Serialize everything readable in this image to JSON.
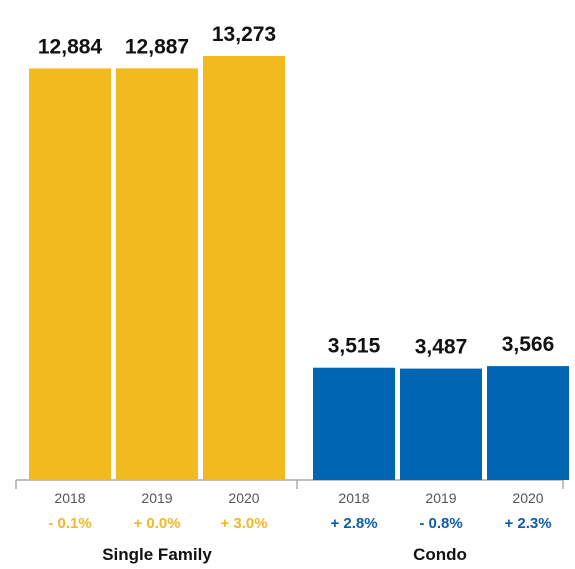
{
  "chart_data": {
    "type": "bar",
    "title": "",
    "xlabel": "",
    "ylabel": "",
    "ylim": [
      0,
      13273
    ],
    "groups": [
      {
        "name": "Single Family",
        "color": "#F2BA1E",
        "change_color": "#F2BA1E",
        "categories": [
          "2018",
          "2019",
          "2020"
        ],
        "values": [
          12884,
          12887,
          13273
        ],
        "value_labels": [
          "12,884",
          "12,887",
          "13,273"
        ],
        "changes": [
          "- 0.1%",
          "+ 0.0%",
          "+ 3.0%"
        ]
      },
      {
        "name": "Condo",
        "color": "#0066B3",
        "change_color": "#0B5EA8",
        "categories": [
          "2018",
          "2019",
          "2020"
        ],
        "values": [
          3515,
          3487,
          3566
        ],
        "value_labels": [
          "3,515",
          "3,487",
          "3,566"
        ],
        "changes": [
          "+ 2.8%",
          "- 0.8%",
          "+ 2.3%"
        ]
      }
    ],
    "grid": false,
    "legend": "none"
  }
}
